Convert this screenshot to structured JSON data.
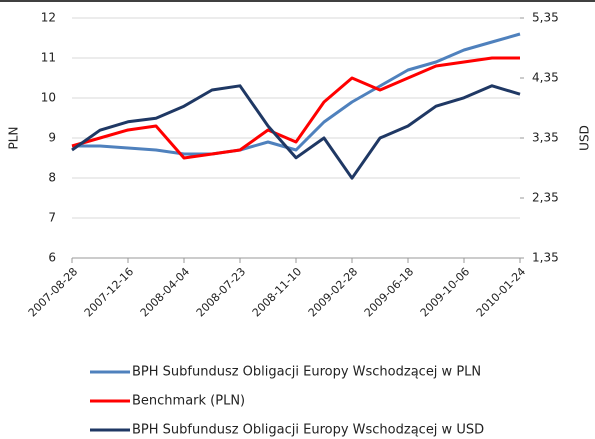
{
  "chart_data": {
    "type": "line",
    "y_label": "PLN",
    "y2_label": "USD",
    "x": [
      "2007-08-28",
      "2007-10-22",
      "2007-12-16",
      "2008-02-09",
      "2008-04-04",
      "2008-05-29",
      "2008-07-23",
      "2008-09-16",
      "2008-11-10",
      "2009-01-04",
      "2009-02-28",
      "2009-04-24",
      "2009-06-18",
      "2009-08-12",
      "2009-10-06",
      "2009-11-30",
      "2010-01-24"
    ],
    "xlim": [
      "2007-08-28",
      "2010-01-24"
    ],
    "xticks": [
      "2007-08-28",
      "2007-12-16",
      "2008-04-04",
      "2008-07-23",
      "2008-11-10",
      "2009-02-28",
      "2009-06-18",
      "2009-10-06",
      "2010-01-24"
    ],
    "ylim": [
      6,
      12
    ],
    "yticks": [
      6,
      7,
      8,
      9,
      10,
      11,
      12
    ],
    "y2lim": [
      1.35,
      5.35
    ],
    "y2ticks": [
      {
        "value": 1.35,
        "label": "1,35"
      },
      {
        "value": 2.35,
        "label": "2,35"
      },
      {
        "value": 3.35,
        "label": "3,35"
      },
      {
        "value": 4.35,
        "label": "4,35"
      },
      {
        "value": 5.35,
        "label": "5,35"
      }
    ],
    "grid": true,
    "series": [
      {
        "name": "BPH Subfundusz Obligacji Europy Wschodzącej w PLN",
        "color": "#4f81bd",
        "values": [
          8.8,
          8.8,
          8.75,
          8.7,
          8.6,
          8.6,
          8.7,
          8.9,
          8.7,
          9.4,
          9.9,
          10.3,
          10.7,
          10.9,
          11.2,
          11.4,
          11.6
        ]
      },
      {
        "name": "Benchmark (PLN)",
        "color": "#ff0000",
        "values": [
          8.8,
          9.0,
          9.2,
          9.3,
          8.5,
          8.6,
          8.7,
          9.2,
          8.9,
          9.9,
          10.5,
          10.2,
          10.5,
          10.8,
          10.9,
          11.0,
          11.0
        ]
      },
      {
        "name": "BPH Subfundusz Obligacji Europy Wschodzącej w USD",
        "color": "#1f3864",
        "axis": "y2",
        "values": [
          3.15,
          3.48,
          3.62,
          3.68,
          3.88,
          4.15,
          4.22,
          3.55,
          3.02,
          3.35,
          2.68,
          3.35,
          3.55,
          3.88,
          4.02,
          4.22,
          4.08
        ]
      }
    ]
  }
}
